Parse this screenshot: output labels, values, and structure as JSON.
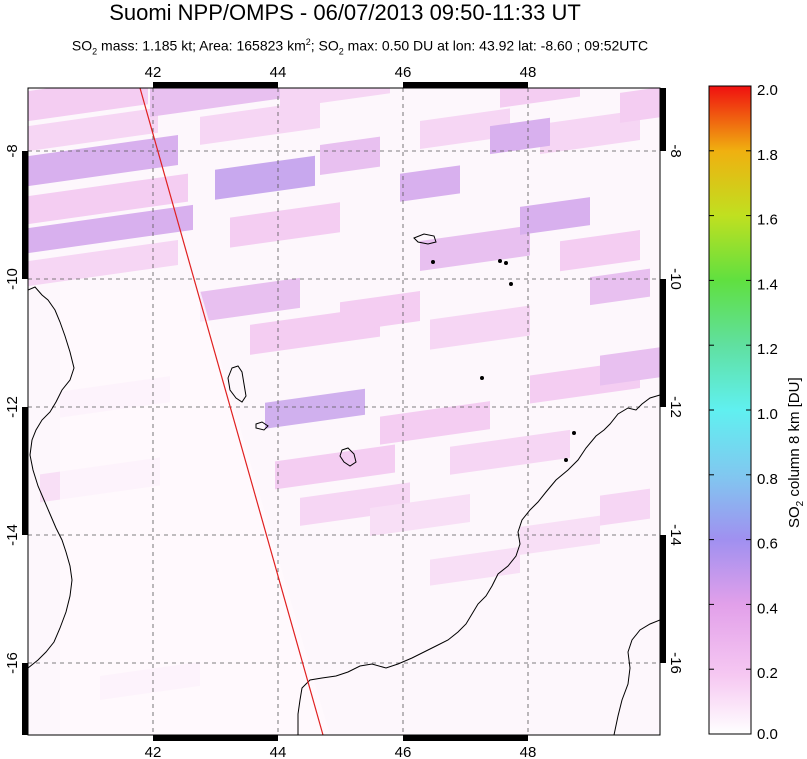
{
  "title": "Suomi NPP/OMPS - 06/07/2013 09:50-11:33 UT",
  "subtitle": {
    "mass_label": "SO",
    "mass_sub": "2",
    "mass_text": " mass: 1.185 kt; Area: 165823 km",
    "area_sup": "2",
    "max_prefix": "; SO",
    "max_sub": "2",
    "max_text": " max: 0.50 DU at lon: 43.92 lat: -8.60 ; 09:52UTC"
  },
  "map": {
    "lon_range": [
      40,
      50
    ],
    "lat_range": [
      -17.2,
      -7.0
    ],
    "lon_ticks": [
      "42",
      "44",
      "46",
      "48"
    ],
    "lat_ticks": [
      "-8",
      "-10",
      "-12",
      "-14",
      "-16"
    ],
    "lat_tick_values": [
      -8,
      -10,
      -12,
      -14,
      -16
    ],
    "lon_tick_values": [
      42,
      44,
      46,
      48
    ],
    "gridlines": "dashed",
    "coastline_color": "#000000",
    "orbit_line_color": "#e02020"
  },
  "colorbar": {
    "label_main": "SO",
    "label_sub": "2",
    "label_rest": " column 8 km [DU]",
    "ticks": [
      "2.0",
      "1.8",
      "1.6",
      "1.4",
      "1.2",
      "1.0",
      "0.8",
      "0.6",
      "0.4",
      "0.2",
      "0.0"
    ],
    "range": [
      0.0,
      2.0
    ],
    "colors": [
      "#ffffff",
      "#f6c8f2",
      "#e2a0ea",
      "#a090f0",
      "#80d8f0",
      "#60f0f0",
      "#60e0a0",
      "#60e040",
      "#c0e020",
      "#f0c010",
      "#f06010",
      "#f01010"
    ]
  },
  "chart_data": {
    "type": "heatmap",
    "title": "Suomi NPP/OMPS - 06/07/2013 09:50-11:33 UT",
    "xlabel": "",
    "ylabel": "",
    "x_range": [
      40,
      50
    ],
    "y_range": [
      -17.2,
      -7.0
    ],
    "color_scale_label": "SO2 column 8 km [DU]",
    "color_scale_range": [
      0.0,
      2.0
    ],
    "max_value": {
      "value": 0.5,
      "lon": 43.92,
      "lat": -8.6,
      "time": "09:52UTC"
    }
  }
}
